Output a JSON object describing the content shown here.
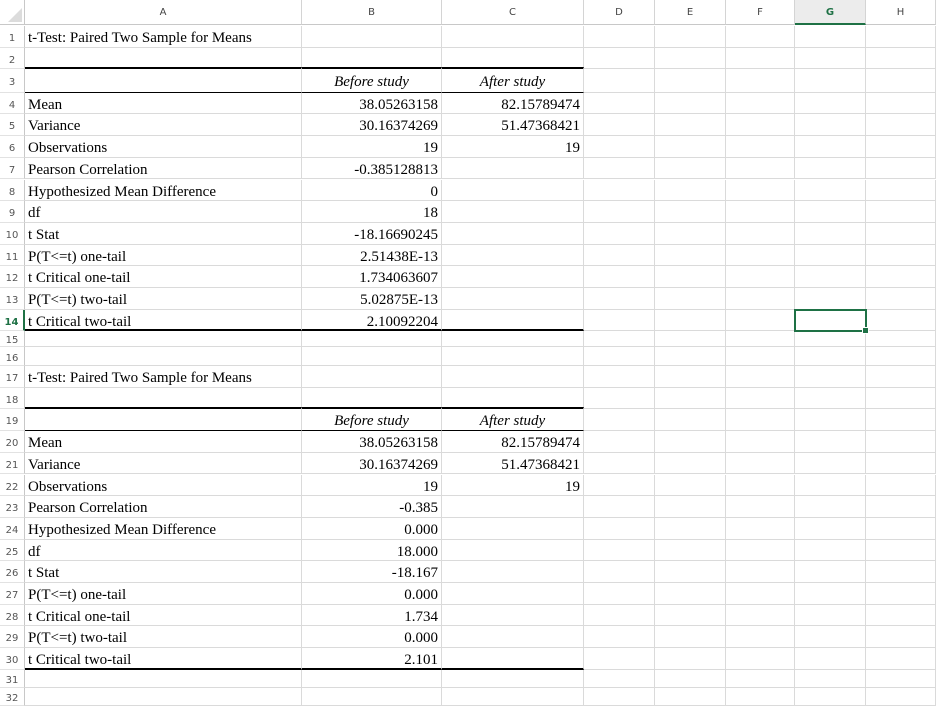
{
  "columns": [
    "A",
    "B",
    "C",
    "D",
    "E",
    "F",
    "G",
    "H"
  ],
  "selected_cell": {
    "column": "G",
    "row": 14
  },
  "colors": {
    "accent": "#1e7145",
    "gridline": "#dadada"
  },
  "rows": [
    {
      "n": 1,
      "a": "t-Test: Paired Two Sample for Means",
      "b": "",
      "c": ""
    },
    {
      "n": 2,
      "a": "",
      "b": "",
      "c": ""
    },
    {
      "n": 3,
      "a": "",
      "b": "Before study",
      "c": "After study",
      "header": true
    },
    {
      "n": 4,
      "a": "Mean",
      "b": "38.05263158",
      "c": "82.15789474"
    },
    {
      "n": 5,
      "a": "Variance",
      "b": "30.16374269",
      "c": "51.47368421"
    },
    {
      "n": 6,
      "a": "Observations",
      "b": "19",
      "c": "19"
    },
    {
      "n": 7,
      "a": "Pearson Correlation",
      "b": "-0.385128813",
      "c": ""
    },
    {
      "n": 8,
      "a": "Hypothesized Mean Difference",
      "b": "0",
      "c": ""
    },
    {
      "n": 9,
      "a": "df",
      "b": "18",
      "c": ""
    },
    {
      "n": 10,
      "a": "t Stat",
      "b": "-18.16690245",
      "c": ""
    },
    {
      "n": 11,
      "a": "P(T<=t) one-tail",
      "b": "2.51438E-13",
      "c": ""
    },
    {
      "n": 12,
      "a": "t Critical one-tail",
      "b": "1.734063607",
      "c": ""
    },
    {
      "n": 13,
      "a": "P(T<=t) two-tail",
      "b": "5.02875E-13",
      "c": ""
    },
    {
      "n": 14,
      "a": "t Critical two-tail",
      "b": "2.10092204",
      "c": "",
      "last": true
    },
    {
      "n": 15,
      "a": "",
      "b": "",
      "c": ""
    },
    {
      "n": 16,
      "a": "",
      "b": "",
      "c": ""
    },
    {
      "n": 17,
      "a": "t-Test: Paired Two Sample for Means",
      "b": "",
      "c": ""
    },
    {
      "n": 18,
      "a": "",
      "b": "",
      "c": ""
    },
    {
      "n": 19,
      "a": "",
      "b": "Before study",
      "c": "After study",
      "header": true
    },
    {
      "n": 20,
      "a": "Mean",
      "b": "38.05263158",
      "c": "82.15789474"
    },
    {
      "n": 21,
      "a": "Variance",
      "b": "30.16374269",
      "c": "51.47368421"
    },
    {
      "n": 22,
      "a": "Observations",
      "b": "19",
      "c": "19"
    },
    {
      "n": 23,
      "a": "Pearson Correlation",
      "b": "-0.385",
      "c": ""
    },
    {
      "n": 24,
      "a": "Hypothesized Mean Difference",
      "b": "0.000",
      "c": ""
    },
    {
      "n": 25,
      "a": "df",
      "b": "18.000",
      "c": ""
    },
    {
      "n": 26,
      "a": "t Stat",
      "b": "-18.167",
      "c": ""
    },
    {
      "n": 27,
      "a": "P(T<=t) one-tail",
      "b": "0.000",
      "c": ""
    },
    {
      "n": 28,
      "a": "t Critical one-tail",
      "b": "1.734",
      "c": ""
    },
    {
      "n": 29,
      "a": "P(T<=t) two-tail",
      "b": "0.000",
      "c": ""
    },
    {
      "n": 30,
      "a": "t Critical two-tail",
      "b": "2.101",
      "c": "",
      "last": true
    },
    {
      "n": 31,
      "a": "",
      "b": "",
      "c": ""
    },
    {
      "n": 32,
      "a": "",
      "b": "",
      "c": ""
    }
  ]
}
